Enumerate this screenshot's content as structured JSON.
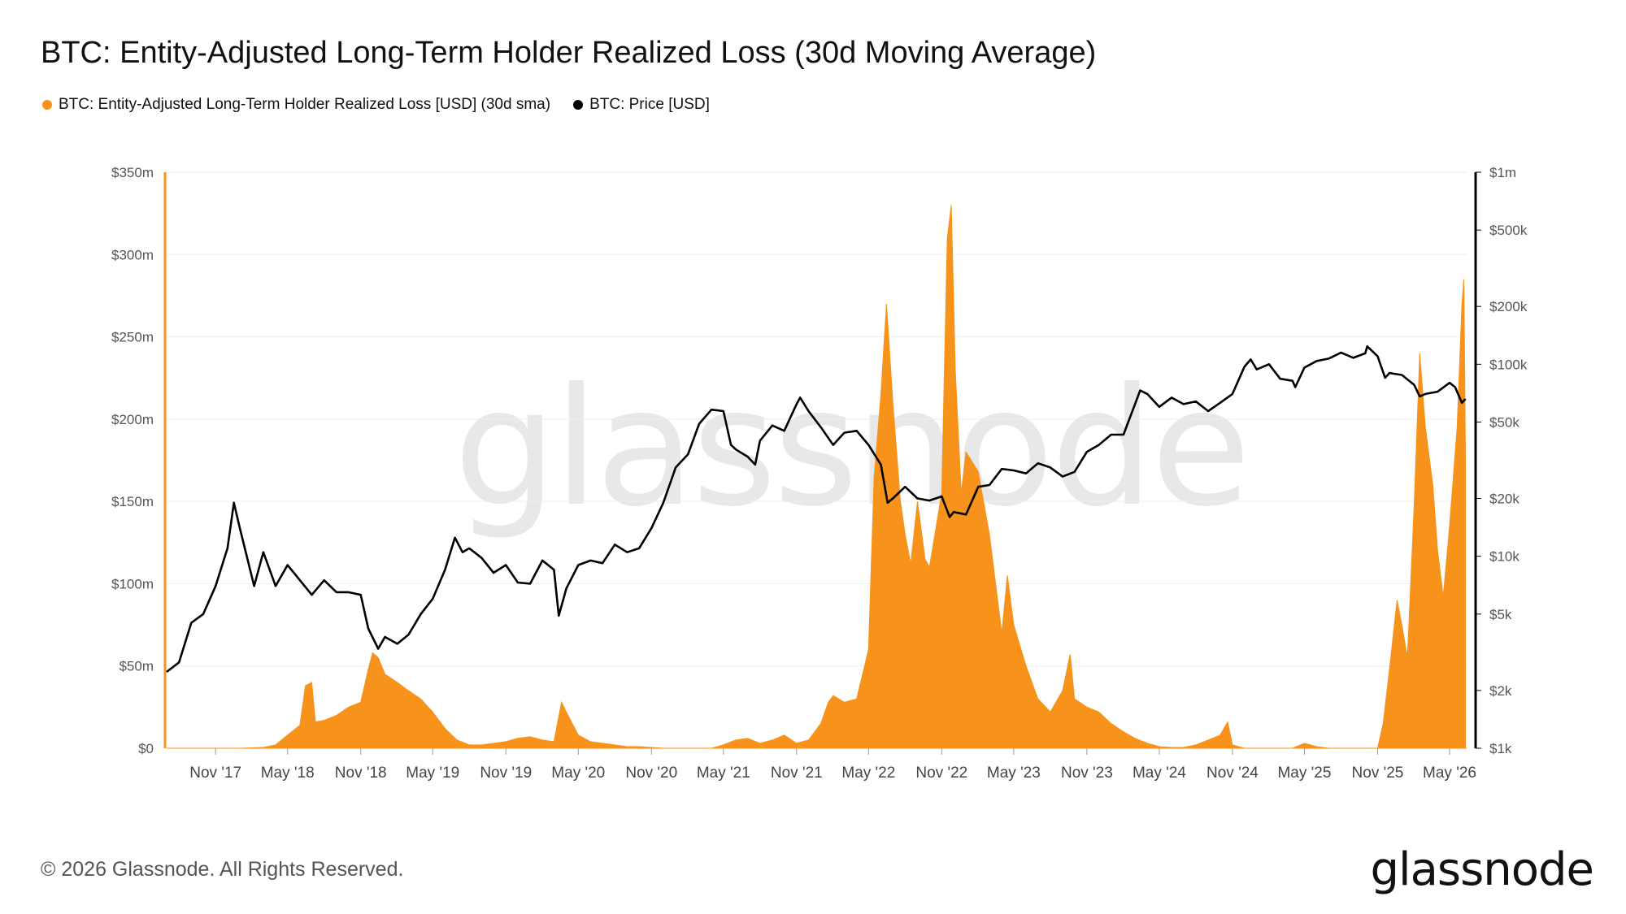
{
  "title": "BTC: Entity-Adjusted Long-Term Holder Realized Loss (30d Moving Average)",
  "legend": [
    {
      "label": "BTC: Entity-Adjusted Long-Term Holder Realized Loss [USD] (30d sma)",
      "color": "#f7931a"
    },
    {
      "label": "BTC: Price [USD]",
      "color": "#000000"
    }
  ],
  "watermark": "glassnode",
  "footer": "© 2026 Glassnode. All Rights Reserved.",
  "brand": "glassnode",
  "chart_data": {
    "type": "area",
    "time_range": [
      "Jul '17",
      "Jul '26"
    ],
    "x_ticks": [
      "Nov '17",
      "May '18",
      "Nov '18",
      "May '19",
      "Nov '19",
      "May '20",
      "Nov '20",
      "May '21",
      "Nov '21",
      "May '22",
      "Nov '22",
      "May '23",
      "Nov '23",
      "May '24",
      "Nov '24",
      "May '25",
      "Nov '25",
      "May '26"
    ],
    "y_left": {
      "label": "",
      "ticks": [
        "$0",
        "$50m",
        "$100m",
        "$150m",
        "$200m",
        "$250m",
        "$300m",
        "$350m"
      ],
      "range": [
        0,
        350
      ]
    },
    "y_right": {
      "label": "",
      "scale": "log",
      "ticks": [
        "$1k",
        "$2k",
        "$5k",
        "$10k",
        "$20k",
        "$50k",
        "$100k",
        "$200k",
        "$500k",
        "$1m"
      ],
      "tick_values": [
        1000,
        2000,
        5000,
        10000,
        20000,
        50000,
        100000,
        200000,
        500000,
        1000000
      ],
      "range": [
        1000,
        1000000
      ]
    },
    "series": [
      {
        "name": "BTC: Entity-Adjusted Long-Term Holder Realized Loss [USD] (30d sma)",
        "color": "#f7931a",
        "axis": "left",
        "unit": "million USD",
        "points": [
          [
            "2017-07-01",
            0
          ],
          [
            "2018-01-01",
            0
          ],
          [
            "2018-03-01",
            0.5
          ],
          [
            "2018-04-01",
            2
          ],
          [
            "2018-05-01",
            8
          ],
          [
            "2018-06-01",
            14
          ],
          [
            "2018-06-15",
            38
          ],
          [
            "2018-07-01",
            40
          ],
          [
            "2018-07-10",
            16
          ],
          [
            "2018-08-01",
            17
          ],
          [
            "2018-09-01",
            20
          ],
          [
            "2018-10-01",
            25
          ],
          [
            "2018-11-01",
            28
          ],
          [
            "2018-11-20",
            48
          ],
          [
            "2018-12-01",
            58
          ],
          [
            "2018-12-15",
            55
          ],
          [
            "2019-01-01",
            45
          ],
          [
            "2019-02-01",
            40
          ],
          [
            "2019-03-01",
            35
          ],
          [
            "2019-04-01",
            30
          ],
          [
            "2019-05-01",
            22
          ],
          [
            "2019-06-01",
            12
          ],
          [
            "2019-07-01",
            5
          ],
          [
            "2019-08-01",
            2
          ],
          [
            "2019-09-01",
            2
          ],
          [
            "2019-10-01",
            3
          ],
          [
            "2019-11-01",
            4
          ],
          [
            "2019-12-01",
            6
          ],
          [
            "2020-01-01",
            7
          ],
          [
            "2020-02-01",
            5
          ],
          [
            "2020-03-01",
            4
          ],
          [
            "2020-03-20",
            28
          ],
          [
            "2020-04-01",
            22
          ],
          [
            "2020-05-01",
            8
          ],
          [
            "2020-06-01",
            4
          ],
          [
            "2020-07-01",
            3
          ],
          [
            "2020-08-01",
            2
          ],
          [
            "2020-09-01",
            1
          ],
          [
            "2020-10-01",
            1
          ],
          [
            "2020-11-01",
            0.5
          ],
          [
            "2020-12-01",
            0
          ],
          [
            "2021-04-01",
            0
          ],
          [
            "2021-05-01",
            2
          ],
          [
            "2021-06-01",
            5
          ],
          [
            "2021-07-01",
            6
          ],
          [
            "2021-08-01",
            3
          ],
          [
            "2021-09-01",
            5
          ],
          [
            "2021-10-01",
            8
          ],
          [
            "2021-11-01",
            3
          ],
          [
            "2021-12-01",
            5
          ],
          [
            "2022-01-01",
            15
          ],
          [
            "2022-01-20",
            28
          ],
          [
            "2022-02-01",
            32
          ],
          [
            "2022-03-01",
            28
          ],
          [
            "2022-04-01",
            30
          ],
          [
            "2022-05-01",
            60
          ],
          [
            "2022-05-15",
            165
          ],
          [
            "2022-06-01",
            215
          ],
          [
            "2022-06-15",
            270
          ],
          [
            "2022-07-01",
            210
          ],
          [
            "2022-07-20",
            150
          ],
          [
            "2022-08-01",
            130
          ],
          [
            "2022-08-15",
            112
          ],
          [
            "2022-09-01",
            150
          ],
          [
            "2022-09-20",
            115
          ],
          [
            "2022-10-01",
            110
          ],
          [
            "2022-11-01",
            155
          ],
          [
            "2022-11-15",
            310
          ],
          [
            "2022-11-25",
            330
          ],
          [
            "2022-12-05",
            230
          ],
          [
            "2022-12-20",
            155
          ],
          [
            "2023-01-01",
            180
          ],
          [
            "2023-02-01",
            168
          ],
          [
            "2023-03-01",
            130
          ],
          [
            "2023-04-01",
            70
          ],
          [
            "2023-04-15",
            105
          ],
          [
            "2023-05-01",
            75
          ],
          [
            "2023-06-01",
            50
          ],
          [
            "2023-07-01",
            30
          ],
          [
            "2023-08-01",
            22
          ],
          [
            "2023-09-01",
            35
          ],
          [
            "2023-09-20",
            57
          ],
          [
            "2023-10-01",
            30
          ],
          [
            "2023-11-01",
            25
          ],
          [
            "2023-12-01",
            22
          ],
          [
            "2024-01-01",
            15
          ],
          [
            "2024-02-01",
            10
          ],
          [
            "2024-03-01",
            6
          ],
          [
            "2024-04-01",
            3
          ],
          [
            "2024-05-01",
            1
          ],
          [
            "2024-06-01",
            0.5
          ],
          [
            "2024-07-01",
            0.5
          ],
          [
            "2024-08-01",
            2
          ],
          [
            "2024-09-01",
            5
          ],
          [
            "2024-10-01",
            8
          ],
          [
            "2024-10-20",
            16
          ],
          [
            "2024-11-01",
            2
          ],
          [
            "2024-12-01",
            0
          ],
          [
            "2025-04-01",
            0
          ],
          [
            "2025-05-01",
            3
          ],
          [
            "2025-06-01",
            1
          ],
          [
            "2025-07-01",
            0
          ],
          [
            "2025-11-01",
            0
          ],
          [
            "2025-11-15",
            15
          ],
          [
            "2025-12-01",
            48
          ],
          [
            "2025-12-20",
            90
          ],
          [
            "2026-01-01",
            75
          ],
          [
            "2026-01-15",
            55
          ],
          [
            "2026-02-01",
            148
          ],
          [
            "2026-02-15",
            240
          ],
          [
            "2026-03-01",
            195
          ],
          [
            "2026-03-20",
            160
          ],
          [
            "2026-04-01",
            120
          ],
          [
            "2026-04-15",
            92
          ],
          [
            "2026-05-01",
            135
          ],
          [
            "2026-05-20",
            195
          ],
          [
            "2026-06-01",
            270
          ],
          [
            "2026-06-06",
            285
          ],
          [
            "2026-06-10",
            170
          ]
        ]
      },
      {
        "name": "BTC: Price [USD]",
        "color": "#000000",
        "axis": "right",
        "unit": "USD",
        "points": [
          [
            "2017-07-01",
            2500
          ],
          [
            "2017-08-01",
            2800
          ],
          [
            "2017-09-01",
            4500
          ],
          [
            "2017-10-01",
            5000
          ],
          [
            "2017-11-01",
            7000
          ],
          [
            "2017-12-01",
            11000
          ],
          [
            "2017-12-17",
            19000
          ],
          [
            "2018-01-01",
            14000
          ],
          [
            "2018-02-06",
            7000
          ],
          [
            "2018-03-01",
            10500
          ],
          [
            "2018-04-01",
            7000
          ],
          [
            "2018-05-01",
            9000
          ],
          [
            "2018-06-01",
            7500
          ],
          [
            "2018-07-01",
            6300
          ],
          [
            "2018-08-01",
            7500
          ],
          [
            "2018-09-01",
            6500
          ],
          [
            "2018-10-01",
            6500
          ],
          [
            "2018-11-01",
            6300
          ],
          [
            "2018-11-20",
            4200
          ],
          [
            "2018-12-15",
            3300
          ],
          [
            "2019-01-01",
            3800
          ],
          [
            "2019-02-01",
            3500
          ],
          [
            "2019-03-01",
            3900
          ],
          [
            "2019-04-01",
            5000
          ],
          [
            "2019-05-01",
            6000
          ],
          [
            "2019-06-01",
            8500
          ],
          [
            "2019-06-26",
            12500
          ],
          [
            "2019-07-15",
            10500
          ],
          [
            "2019-08-01",
            11000
          ],
          [
            "2019-09-01",
            9800
          ],
          [
            "2019-10-01",
            8200
          ],
          [
            "2019-11-01",
            9000
          ],
          [
            "2019-12-01",
            7300
          ],
          [
            "2020-01-01",
            7200
          ],
          [
            "2020-02-01",
            9500
          ],
          [
            "2020-03-01",
            8500
          ],
          [
            "2020-03-13",
            4900
          ],
          [
            "2020-04-01",
            6800
          ],
          [
            "2020-05-01",
            9000
          ],
          [
            "2020-06-01",
            9500
          ],
          [
            "2020-07-01",
            9200
          ],
          [
            "2020-08-01",
            11500
          ],
          [
            "2020-09-01",
            10500
          ],
          [
            "2020-10-01",
            11000
          ],
          [
            "2020-11-01",
            14000
          ],
          [
            "2020-12-01",
            19000
          ],
          [
            "2021-01-01",
            29000
          ],
          [
            "2021-02-01",
            34000
          ],
          [
            "2021-03-01",
            49000
          ],
          [
            "2021-04-01",
            58000
          ],
          [
            "2021-05-01",
            57000
          ],
          [
            "2021-05-20",
            38000
          ],
          [
            "2021-06-01",
            36000
          ],
          [
            "2021-07-01",
            33000
          ],
          [
            "2021-07-20",
            30000
          ],
          [
            "2021-08-01",
            40000
          ],
          [
            "2021-09-01",
            48000
          ],
          [
            "2021-10-01",
            45000
          ],
          [
            "2021-11-01",
            62000
          ],
          [
            "2021-11-10",
            67000
          ],
          [
            "2021-12-01",
            57000
          ],
          [
            "2022-01-01",
            47000
          ],
          [
            "2022-02-01",
            38000
          ],
          [
            "2022-03-01",
            44000
          ],
          [
            "2022-04-01",
            45000
          ],
          [
            "2022-05-01",
            38000
          ],
          [
            "2022-06-01",
            30000
          ],
          [
            "2022-06-18",
            19000
          ],
          [
            "2022-07-01",
            20000
          ],
          [
            "2022-08-01",
            23000
          ],
          [
            "2022-09-01",
            20000
          ],
          [
            "2022-10-01",
            19500
          ],
          [
            "2022-11-01",
            20500
          ],
          [
            "2022-11-21",
            16000
          ],
          [
            "2022-12-01",
            17000
          ],
          [
            "2023-01-01",
            16500
          ],
          [
            "2023-02-01",
            23000
          ],
          [
            "2023-03-01",
            23500
          ],
          [
            "2023-04-01",
            28500
          ],
          [
            "2023-05-01",
            28000
          ],
          [
            "2023-06-01",
            27000
          ],
          [
            "2023-07-01",
            30500
          ],
          [
            "2023-08-01",
            29000
          ],
          [
            "2023-09-01",
            26000
          ],
          [
            "2023-10-01",
            27500
          ],
          [
            "2023-11-01",
            35000
          ],
          [
            "2023-12-01",
            38000
          ],
          [
            "2024-01-01",
            43000
          ],
          [
            "2024-02-01",
            43000
          ],
          [
            "2024-03-01",
            62000
          ],
          [
            "2024-03-14",
            73000
          ],
          [
            "2024-04-01",
            70000
          ],
          [
            "2024-05-01",
            60000
          ],
          [
            "2024-06-01",
            67000
          ],
          [
            "2024-07-01",
            62000
          ],
          [
            "2024-08-01",
            64000
          ],
          [
            "2024-09-01",
            57000
          ],
          [
            "2024-10-01",
            63000
          ],
          [
            "2024-11-01",
            70000
          ],
          [
            "2024-12-01",
            97000
          ],
          [
            "2024-12-17",
            106000
          ],
          [
            "2025-01-01",
            94000
          ],
          [
            "2025-02-01",
            100000
          ],
          [
            "2025-03-01",
            84000
          ],
          [
            "2025-04-01",
            82000
          ],
          [
            "2025-04-08",
            76000
          ],
          [
            "2025-05-01",
            96000
          ],
          [
            "2025-06-01",
            104000
          ],
          [
            "2025-07-01",
            107000
          ],
          [
            "2025-08-01",
            115000
          ],
          [
            "2025-09-01",
            108000
          ],
          [
            "2025-10-01",
            114000
          ],
          [
            "2025-10-06",
            124000
          ],
          [
            "2025-11-01",
            110000
          ],
          [
            "2025-11-20",
            85000
          ],
          [
            "2025-12-01",
            90000
          ],
          [
            "2026-01-01",
            88000
          ],
          [
            "2026-02-01",
            78000
          ],
          [
            "2026-02-15",
            68000
          ],
          [
            "2026-03-01",
            70000
          ],
          [
            "2026-04-01",
            72000
          ],
          [
            "2026-05-01",
            80000
          ],
          [
            "2026-05-15",
            76000
          ],
          [
            "2026-06-01",
            63000
          ],
          [
            "2026-06-10",
            66000
          ]
        ]
      }
    ]
  }
}
